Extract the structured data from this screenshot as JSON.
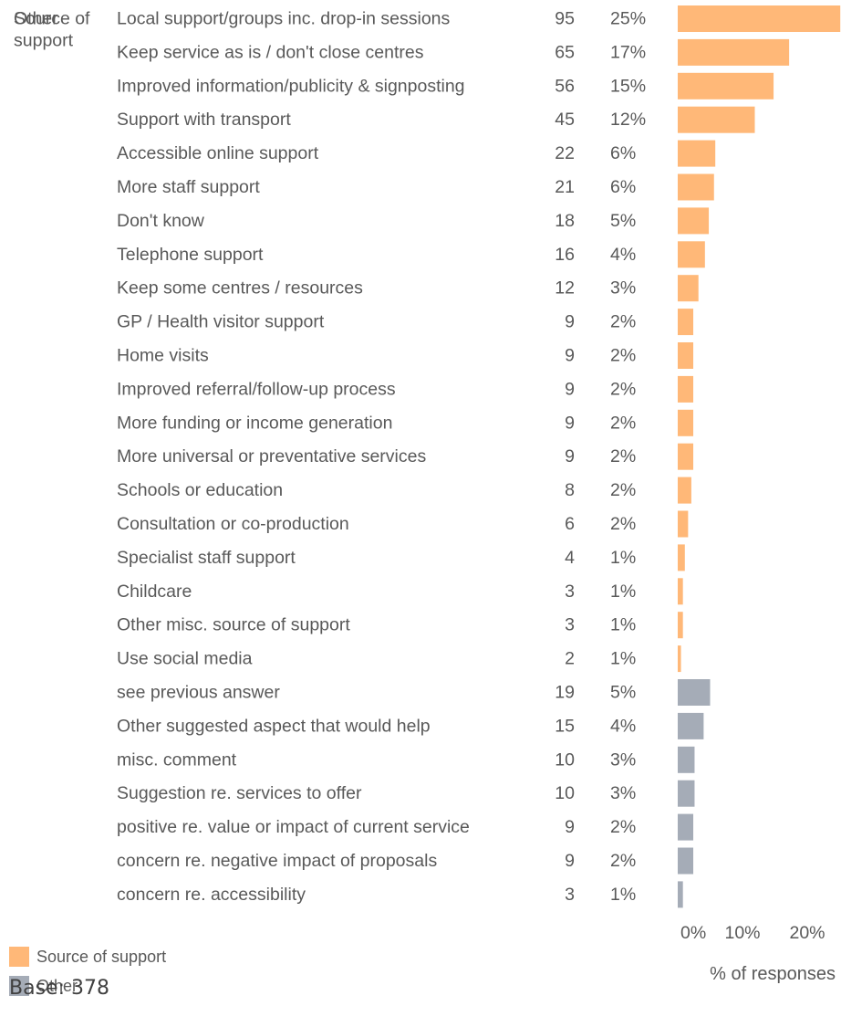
{
  "chart_data": {
    "type": "bar",
    "orientation": "horizontal",
    "groups": [
      {
        "name": "Source of support",
        "label_lines": [
          "Source of",
          "support"
        ],
        "color": "#FFB878",
        "items": [
          {
            "label": "Local support/groups inc. drop-in sessions",
            "count": "95",
            "pct_label": "25%",
            "value": 25.1
          },
          {
            "label": "Keep service as is / don't close centres",
            "count": "65",
            "pct_label": "17%",
            "value": 17.2
          },
          {
            "label": "Improved information/publicity & signposting",
            "count": "56",
            "pct_label": "15%",
            "value": 14.8
          },
          {
            "label": "Support with transport",
            "count": "45",
            "pct_label": "12%",
            "value": 11.9
          },
          {
            "label": "Accessible online support",
            "count": "22",
            "pct_label": "6%",
            "value": 5.8
          },
          {
            "label": "More staff support",
            "count": "21",
            "pct_label": "6%",
            "value": 5.6
          },
          {
            "label": "Don't know",
            "count": "18",
            "pct_label": "5%",
            "value": 4.8
          },
          {
            "label": "Telephone support",
            "count": "16",
            "pct_label": "4%",
            "value": 4.2
          },
          {
            "label": "Keep some centres / resources",
            "count": "12",
            "pct_label": "3%",
            "value": 3.2
          },
          {
            "label": "GP / Health visitor support",
            "count": "9",
            "pct_label": "2%",
            "value": 2.4
          },
          {
            "label": "Home visits",
            "count": "9",
            "pct_label": "2%",
            "value": 2.4
          },
          {
            "label": "Improved referral/follow-up process",
            "count": "9",
            "pct_label": "2%",
            "value": 2.4
          },
          {
            "label": "More funding or income generation",
            "count": "9",
            "pct_label": "2%",
            "value": 2.4
          },
          {
            "label": "More universal or preventative services",
            "count": "9",
            "pct_label": "2%",
            "value": 2.4
          },
          {
            "label": "Schools or education",
            "count": "8",
            "pct_label": "2%",
            "value": 2.1
          },
          {
            "label": "Consultation or co-production",
            "count": "6",
            "pct_label": "2%",
            "value": 1.6
          },
          {
            "label": "Specialist staff support",
            "count": "4",
            "pct_label": "1%",
            "value": 1.1
          },
          {
            "label": "Childcare",
            "count": "3",
            "pct_label": "1%",
            "value": 0.8
          },
          {
            "label": "Other misc. source of support",
            "count": "3",
            "pct_label": "1%",
            "value": 0.8
          },
          {
            "label": "Use social media",
            "count": "2",
            "pct_label": "1%",
            "value": 0.5
          }
        ]
      },
      {
        "name": "Other",
        "label_lines": [
          "Other"
        ],
        "color": "#A5ACB7",
        "items": [
          {
            "label": "see previous answer",
            "count": "19",
            "pct_label": "5%",
            "value": 5.0
          },
          {
            "label": "Other suggested aspect that would help",
            "count": "15",
            "pct_label": "4%",
            "value": 4.0
          },
          {
            "label": "misc. comment",
            "count": "10",
            "pct_label": "3%",
            "value": 2.6
          },
          {
            "label": "Suggestion re. services to offer",
            "count": "10",
            "pct_label": "3%",
            "value": 2.6
          },
          {
            "label": " positive re. value or impact of current service",
            "count": "9",
            "pct_label": "2%",
            "value": 2.4
          },
          {
            "label": "concern re. negative impact of proposals",
            "count": "9",
            "pct_label": "2%",
            "value": 2.4
          },
          {
            "label": "concern re. accessibility",
            "count": "3",
            "pct_label": "1%",
            "value": 0.8
          }
        ]
      }
    ],
    "x_ticks": [
      "0%",
      "10%",
      "20%"
    ],
    "x_tick_values": [
      0,
      10,
      20
    ],
    "xlim": [
      0,
      25
    ],
    "xlabel": "% of responses",
    "legend": {
      "position": "bottom-left",
      "entries": [
        {
          "name": "Source of support",
          "color": "#FFB878"
        },
        {
          "name": "Other",
          "color": "#A5ACB7"
        }
      ]
    }
  },
  "base_note": "Base:  378"
}
